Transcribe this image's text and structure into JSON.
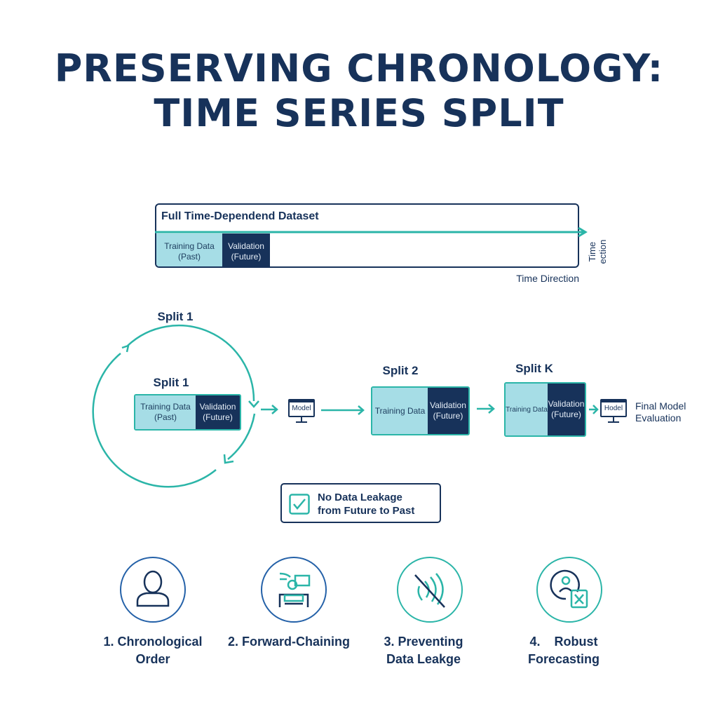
{
  "title": {
    "line1": "PRESERVING CHRONOLOGY:",
    "line2": "TIME SERIES SPLIT"
  },
  "dataset": {
    "title": "Full Time-Dependend Dataset",
    "training": {
      "line1": "Training Data",
      "line2": "(Past)"
    },
    "validation": {
      "line1": "Validation",
      "line2": "(Future)"
    },
    "vertical_label": "Time ection",
    "direction_label": "Time Direction"
  },
  "splits": [
    {
      "top_label": "Split 1",
      "label": "Split 1",
      "training": {
        "line1": "Training Data",
        "line2": "(Past)"
      },
      "validation": {
        "line1": "Validation",
        "line2": "(Future)"
      }
    },
    {
      "label": "Split 2",
      "training": {
        "line1": "Training Data",
        "line2": ""
      },
      "validation": {
        "line1": "Validation",
        "line2": "(Future)"
      }
    },
    {
      "label": "Split K",
      "training": {
        "line1": "Training Data",
        "line2": ""
      },
      "validation": {
        "line1": "Validation",
        "line2": "(Future)"
      }
    }
  ],
  "model_icons": [
    {
      "label": "Model"
    },
    {
      "label": "Hodel"
    }
  ],
  "final": {
    "line1": "Final Model",
    "line2": "Evaluation"
  },
  "leakage": {
    "line1": "No Data Leakage",
    "line2": "from Future to Past",
    "icon": "check-icon"
  },
  "principles": [
    {
      "line1": "1. Chronological",
      "line2": "Order",
      "icon": "person-icon"
    },
    {
      "line1": "2. Forward-Chaining",
      "line2": "",
      "icon": "chain-icon"
    },
    {
      "line1": "3. Preventing",
      "line2": "Data Leakge",
      "icon": "signal-blocked-icon"
    },
    {
      "line1": "4.    Robust",
      "line2": "Forecasting",
      "icon": "forecast-icon"
    }
  ],
  "colors": {
    "navy": "#17325a",
    "teal": "#2bb5a8",
    "light_teal": "#a6dde6",
    "blue": "#2461a8"
  }
}
